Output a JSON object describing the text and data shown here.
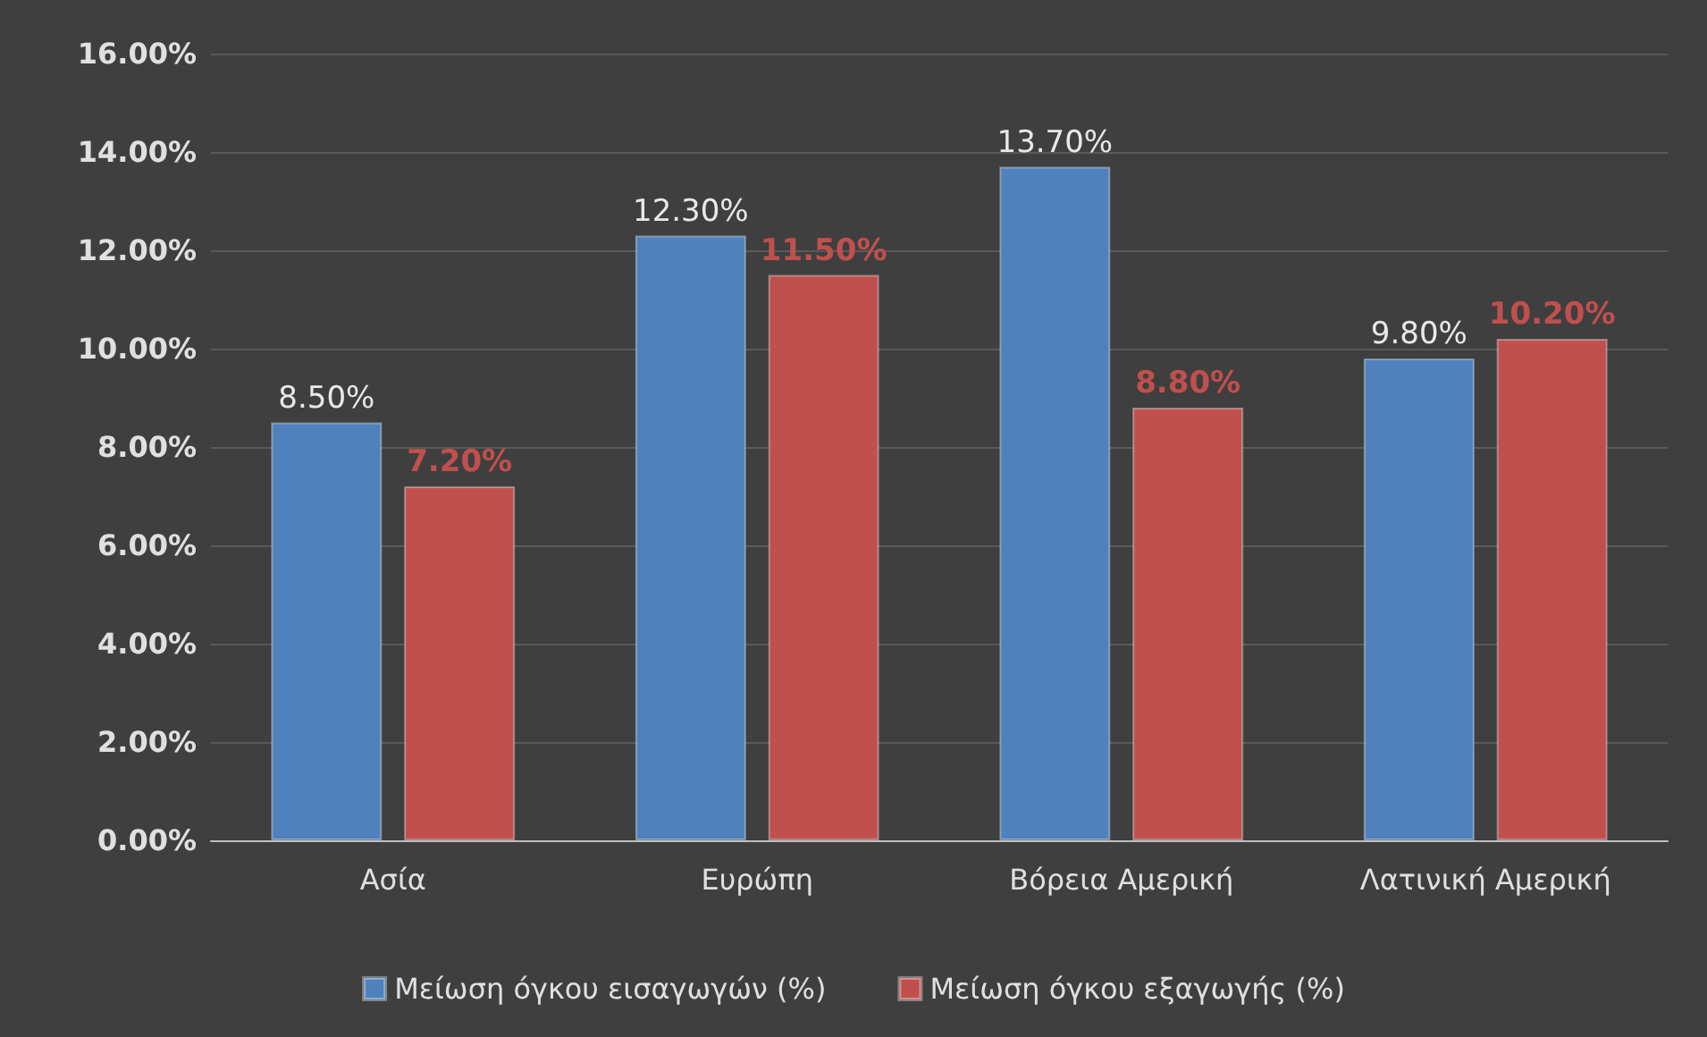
{
  "chart_data": {
    "type": "bar",
    "categories": [
      "Ασία",
      "Ευρώπη",
      "Βόρεια Αμερική",
      "Λατινική Αμερική"
    ],
    "series": [
      {
        "name": "Μείωση όγκου εισαγωγών (%)",
        "color": "#4f81bd",
        "values": [
          8.5,
          12.3,
          13.7,
          9.8
        ],
        "value_labels": [
          "8.50%",
          "12.30%",
          "13.70%",
          "9.80%"
        ]
      },
      {
        "name": "Μείωση όγκου εξαγωγής (%)",
        "color": "#c0504d",
        "values": [
          7.2,
          11.5,
          8.8,
          10.2
        ],
        "value_labels": [
          "7.20%",
          "11.50%",
          "8.80%",
          "10.20%"
        ]
      }
    ],
    "ylim": [
      0,
      16
    ],
    "yticks": [
      {
        "value": 0,
        "label": "0.00%"
      },
      {
        "value": 2,
        "label": "2.00%"
      },
      {
        "value": 4,
        "label": "4.00%"
      },
      {
        "value": 6,
        "label": "6.00%"
      },
      {
        "value": 8,
        "label": "8.00%"
      },
      {
        "value": 10,
        "label": "10.00%"
      },
      {
        "value": 12,
        "label": "12.00%"
      },
      {
        "value": 14,
        "label": "14.00%"
      },
      {
        "value": 16,
        "label": "16.00%"
      }
    ],
    "grid": "y",
    "legend": "bottom"
  }
}
